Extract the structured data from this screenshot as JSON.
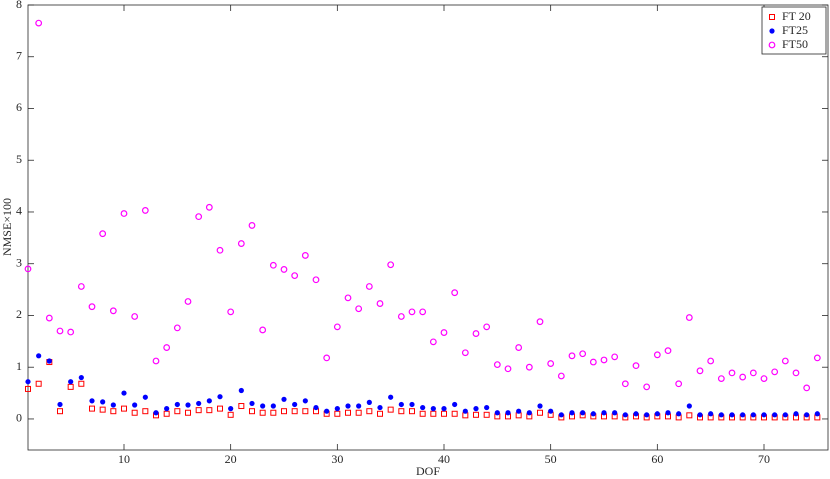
{
  "chart_data": {
    "type": "scatter",
    "x_label": "DOF",
    "y_label": "NMSE×100",
    "xlim": [
      1,
      76
    ],
    "ylim": [
      -0.6,
      8
    ],
    "xticks": [
      10,
      20,
      30,
      40,
      50,
      60,
      70
    ],
    "yticks": [
      0,
      1,
      2,
      3,
      4,
      5,
      6,
      7,
      8
    ],
    "legend_position": "upper right",
    "x": [
      1,
      2,
      3,
      4,
      5,
      6,
      7,
      8,
      9,
      10,
      11,
      12,
      13,
      14,
      15,
      16,
      17,
      18,
      19,
      20,
      21,
      22,
      23,
      24,
      25,
      26,
      27,
      28,
      29,
      30,
      31,
      32,
      33,
      34,
      35,
      36,
      37,
      38,
      39,
      40,
      41,
      42,
      43,
      44,
      45,
      46,
      47,
      48,
      49,
      50,
      51,
      52,
      53,
      54,
      55,
      56,
      57,
      58,
      59,
      60,
      61,
      62,
      63,
      64,
      65,
      66,
      67,
      68,
      69,
      70,
      71,
      72,
      73,
      74,
      75
    ],
    "series": [
      {
        "name": "FT 20",
        "color": "#ff0000",
        "marker": "square",
        "values": [
          0.58,
          0.68,
          1.1,
          0.15,
          0.62,
          0.68,
          0.2,
          0.18,
          0.15,
          0.2,
          0.12,
          0.15,
          0.07,
          0.1,
          0.15,
          0.12,
          0.17,
          0.17,
          0.2,
          0.08,
          0.25,
          0.15,
          0.12,
          0.12,
          0.15,
          0.15,
          0.15,
          0.15,
          0.1,
          0.1,
          0.12,
          0.12,
          0.15,
          0.1,
          0.18,
          0.15,
          0.15,
          0.1,
          0.1,
          0.1,
          0.1,
          0.07,
          0.08,
          0.08,
          0.05,
          0.05,
          0.07,
          0.05,
          0.12,
          0.08,
          0.03,
          0.05,
          0.07,
          0.05,
          0.05,
          0.05,
          0.03,
          0.05,
          0.03,
          0.05,
          0.05,
          0.03,
          0.07,
          0.03,
          0.03,
          0.03,
          0.03,
          0.03,
          0.03,
          0.03,
          0.03,
          0.03,
          0.03,
          0.03,
          0.03
        ]
      },
      {
        "name": "FT25",
        "color": "#0000ff",
        "marker": "dot",
        "values": [
          0.72,
          1.22,
          1.12,
          0.28,
          0.72,
          0.8,
          0.35,
          0.33,
          0.27,
          0.5,
          0.27,
          0.42,
          0.12,
          0.2,
          0.28,
          0.27,
          0.3,
          0.35,
          0.43,
          0.2,
          0.55,
          0.3,
          0.25,
          0.25,
          0.38,
          0.28,
          0.35,
          0.22,
          0.15,
          0.2,
          0.25,
          0.25,
          0.32,
          0.22,
          0.42,
          0.28,
          0.28,
          0.22,
          0.2,
          0.2,
          0.28,
          0.15,
          0.2,
          0.22,
          0.12,
          0.12,
          0.15,
          0.12,
          0.25,
          0.15,
          0.08,
          0.12,
          0.12,
          0.1,
          0.12,
          0.12,
          0.08,
          0.1,
          0.08,
          0.1,
          0.12,
          0.1,
          0.25,
          0.08,
          0.1,
          0.08,
          0.08,
          0.08,
          0.08,
          0.08,
          0.08,
          0.08,
          0.1,
          0.08,
          0.1
        ]
      },
      {
        "name": "FT50",
        "color": "#ff00ff",
        "marker": "circle",
        "values": [
          2.9,
          7.65,
          1.95,
          1.7,
          1.68,
          2.56,
          2.17,
          3.58,
          2.09,
          3.97,
          1.98,
          4.03,
          1.12,
          1.38,
          1.76,
          2.27,
          3.91,
          4.09,
          3.26,
          2.07,
          3.39,
          3.74,
          1.72,
          2.97,
          2.89,
          2.77,
          3.16,
          2.69,
          1.18,
          1.78,
          2.34,
          2.13,
          2.56,
          2.23,
          2.98,
          1.98,
          2.07,
          2.07,
          1.49,
          1.67,
          2.44,
          1.28,
          1.65,
          1.78,
          1.05,
          0.97,
          1.38,
          1.0,
          1.88,
          1.07,
          0.83,
          1.22,
          1.26,
          1.1,
          1.14,
          1.2,
          0.68,
          1.03,
          0.62,
          1.24,
          1.32,
          0.68,
          1.96,
          0.93,
          1.12,
          0.78,
          0.89,
          0.81,
          0.89,
          0.78,
          0.91,
          1.12,
          0.89,
          0.6,
          1.18
        ]
      }
    ]
  }
}
